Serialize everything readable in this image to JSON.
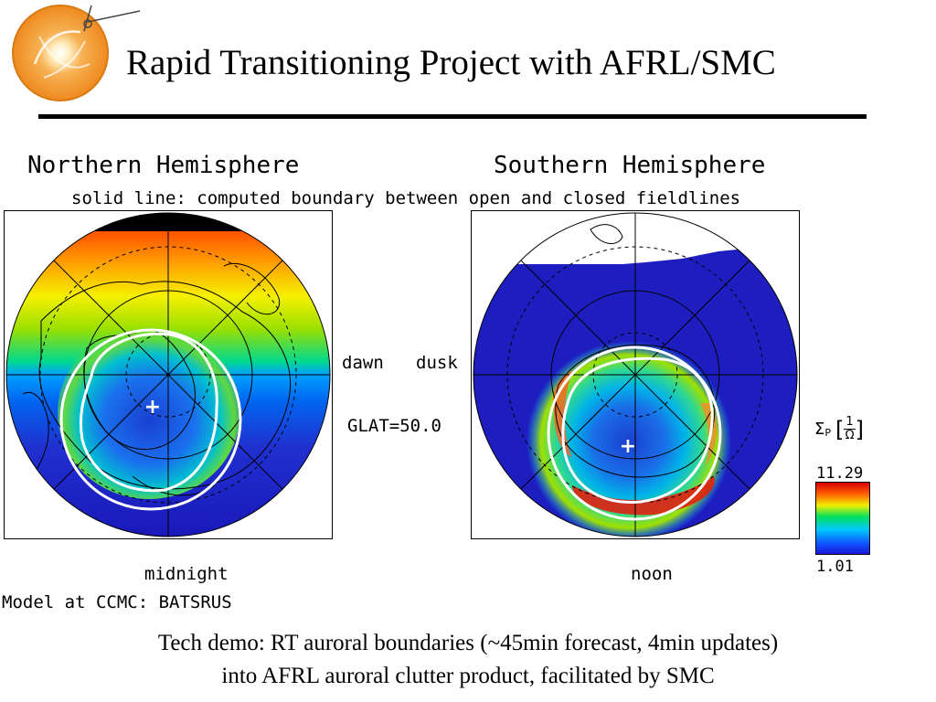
{
  "slide": {
    "title": "Rapid Transitioning Project with AFRL/SMC",
    "logo_icon": "sun-orbit-logo-icon"
  },
  "figure": {
    "north_title": "Northern Hemisphere",
    "south_title": "Southern Hemisphere",
    "subtitle": "solid line: computed boundary between open and closed fieldlines",
    "dawn": "dawn",
    "dusk": "dusk",
    "glat": "GLAT=50.0",
    "midnight": "midnight",
    "noon": "noon",
    "model": "Model at CCMC: BATSRUS",
    "colorbar": {
      "symbol": "Σ",
      "subscript": "P",
      "unit_num": "1",
      "unit_den": "Ω",
      "max": "11.29",
      "min": "1.01",
      "colors": [
        "#1a1ad6",
        "#00c8ff",
        "#00e060",
        "#f0f000",
        "#ff6000",
        "#d80000"
      ]
    }
  },
  "caption": {
    "line1": "Tech demo: RT auroral boundaries (~45min forecast, 4min updates)",
    "line2": "into AFRL auroral clutter product, facilitated by SMC"
  }
}
